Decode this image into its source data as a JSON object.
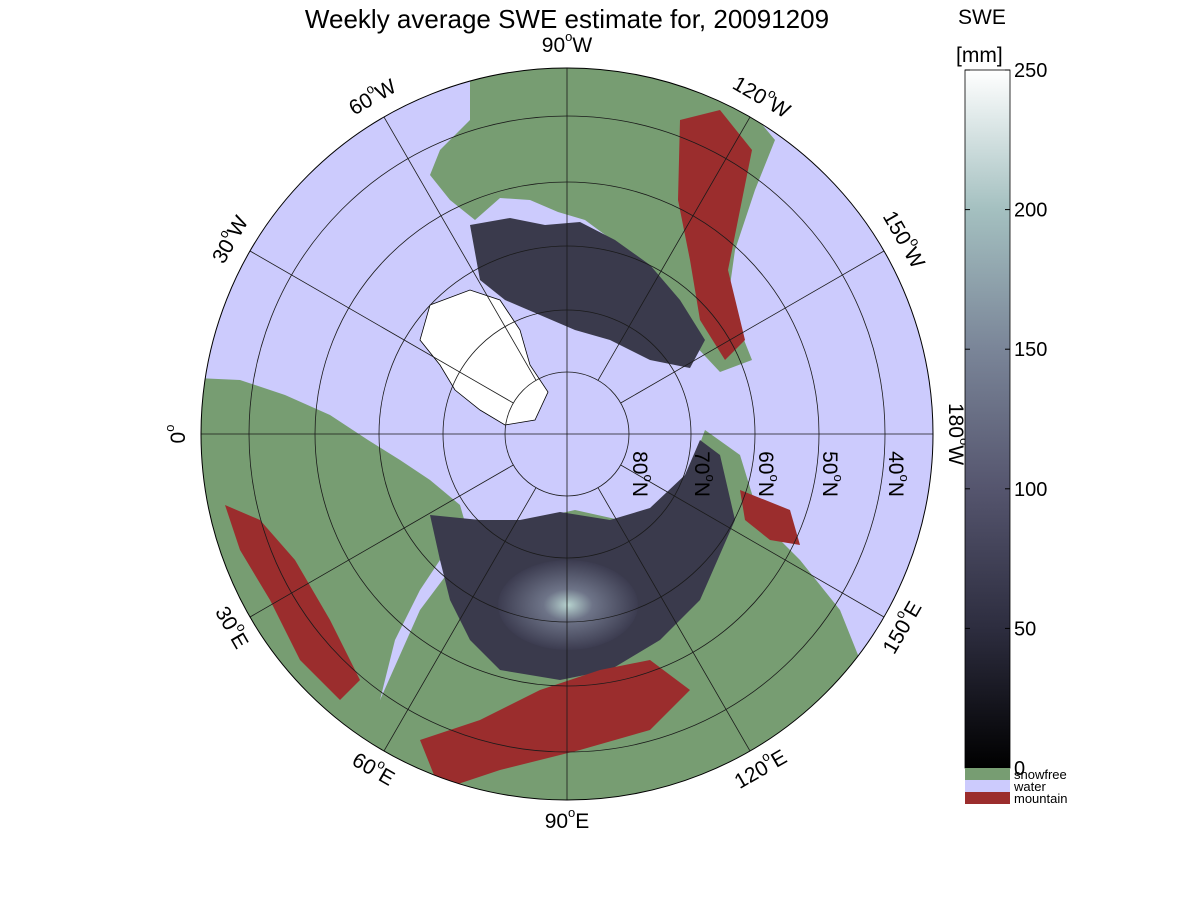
{
  "title": "Weekly average SWE estimate for, 20091209",
  "map": {
    "projection": "north-polar-stereographic",
    "colors": {
      "water": "#cccbfd",
      "snowfree": "#779d72",
      "mountain": "#9b2d2d",
      "grid": "#1a1a1a",
      "coast": "#000000"
    },
    "longitude_labels": [
      {
        "deg": 0,
        "text": "0",
        "sup": "o",
        "suffix": ""
      },
      {
        "deg": 30,
        "text": "30",
        "sup": "o",
        "suffix": "E"
      },
      {
        "deg": 60,
        "text": "60",
        "sup": "o",
        "suffix": "E"
      },
      {
        "deg": 90,
        "text": "90",
        "sup": "o",
        "suffix": "E"
      },
      {
        "deg": 120,
        "text": "120",
        "sup": "o",
        "suffix": "E"
      },
      {
        "deg": 150,
        "text": "150",
        "sup": "o",
        "suffix": "E"
      },
      {
        "deg": 180,
        "text": "180",
        "sup": "o",
        "suffix": "W"
      },
      {
        "deg": -150,
        "text": "150",
        "sup": "o",
        "suffix": "W"
      },
      {
        "deg": -120,
        "text": "120",
        "sup": "o",
        "suffix": "W"
      },
      {
        "deg": -90,
        "text": "90",
        "sup": "o",
        "suffix": "W"
      },
      {
        "deg": -60,
        "text": "60",
        "sup": "o",
        "suffix": "W"
      },
      {
        "deg": -30,
        "text": "30",
        "sup": "o",
        "suffix": "W"
      }
    ],
    "latitude_labels": [
      {
        "text": "80",
        "sup": "o",
        "suffix": "N"
      },
      {
        "text": "70",
        "sup": "o",
        "suffix": "N"
      },
      {
        "text": "60",
        "sup": "o",
        "suffix": "N"
      },
      {
        "text": "50",
        "sup": "o",
        "suffix": "N"
      },
      {
        "text": "40",
        "sup": "o",
        "suffix": "N"
      }
    ]
  },
  "colorbar": {
    "title_line1": "SWE",
    "title_line2": "[mm]",
    "ticks": [
      {
        "value": 0,
        "label": "0"
      },
      {
        "value": 50,
        "label": "50"
      },
      {
        "value": 100,
        "label": "100"
      },
      {
        "value": 150,
        "label": "150"
      },
      {
        "value": 200,
        "label": "200"
      },
      {
        "value": 250,
        "label": "250"
      }
    ],
    "range": [
      0,
      250
    ],
    "gradient_colors": [
      "#000000",
      "#2d2d3f",
      "#55556e",
      "#7a8598",
      "#a4c0c0",
      "#ffffff"
    ],
    "categories": [
      {
        "label": "snowfree",
        "color": "#779d72"
      },
      {
        "label": "water",
        "color": "#cccbfd"
      },
      {
        "label": "mountain",
        "color": "#9b2d2d"
      }
    ]
  }
}
